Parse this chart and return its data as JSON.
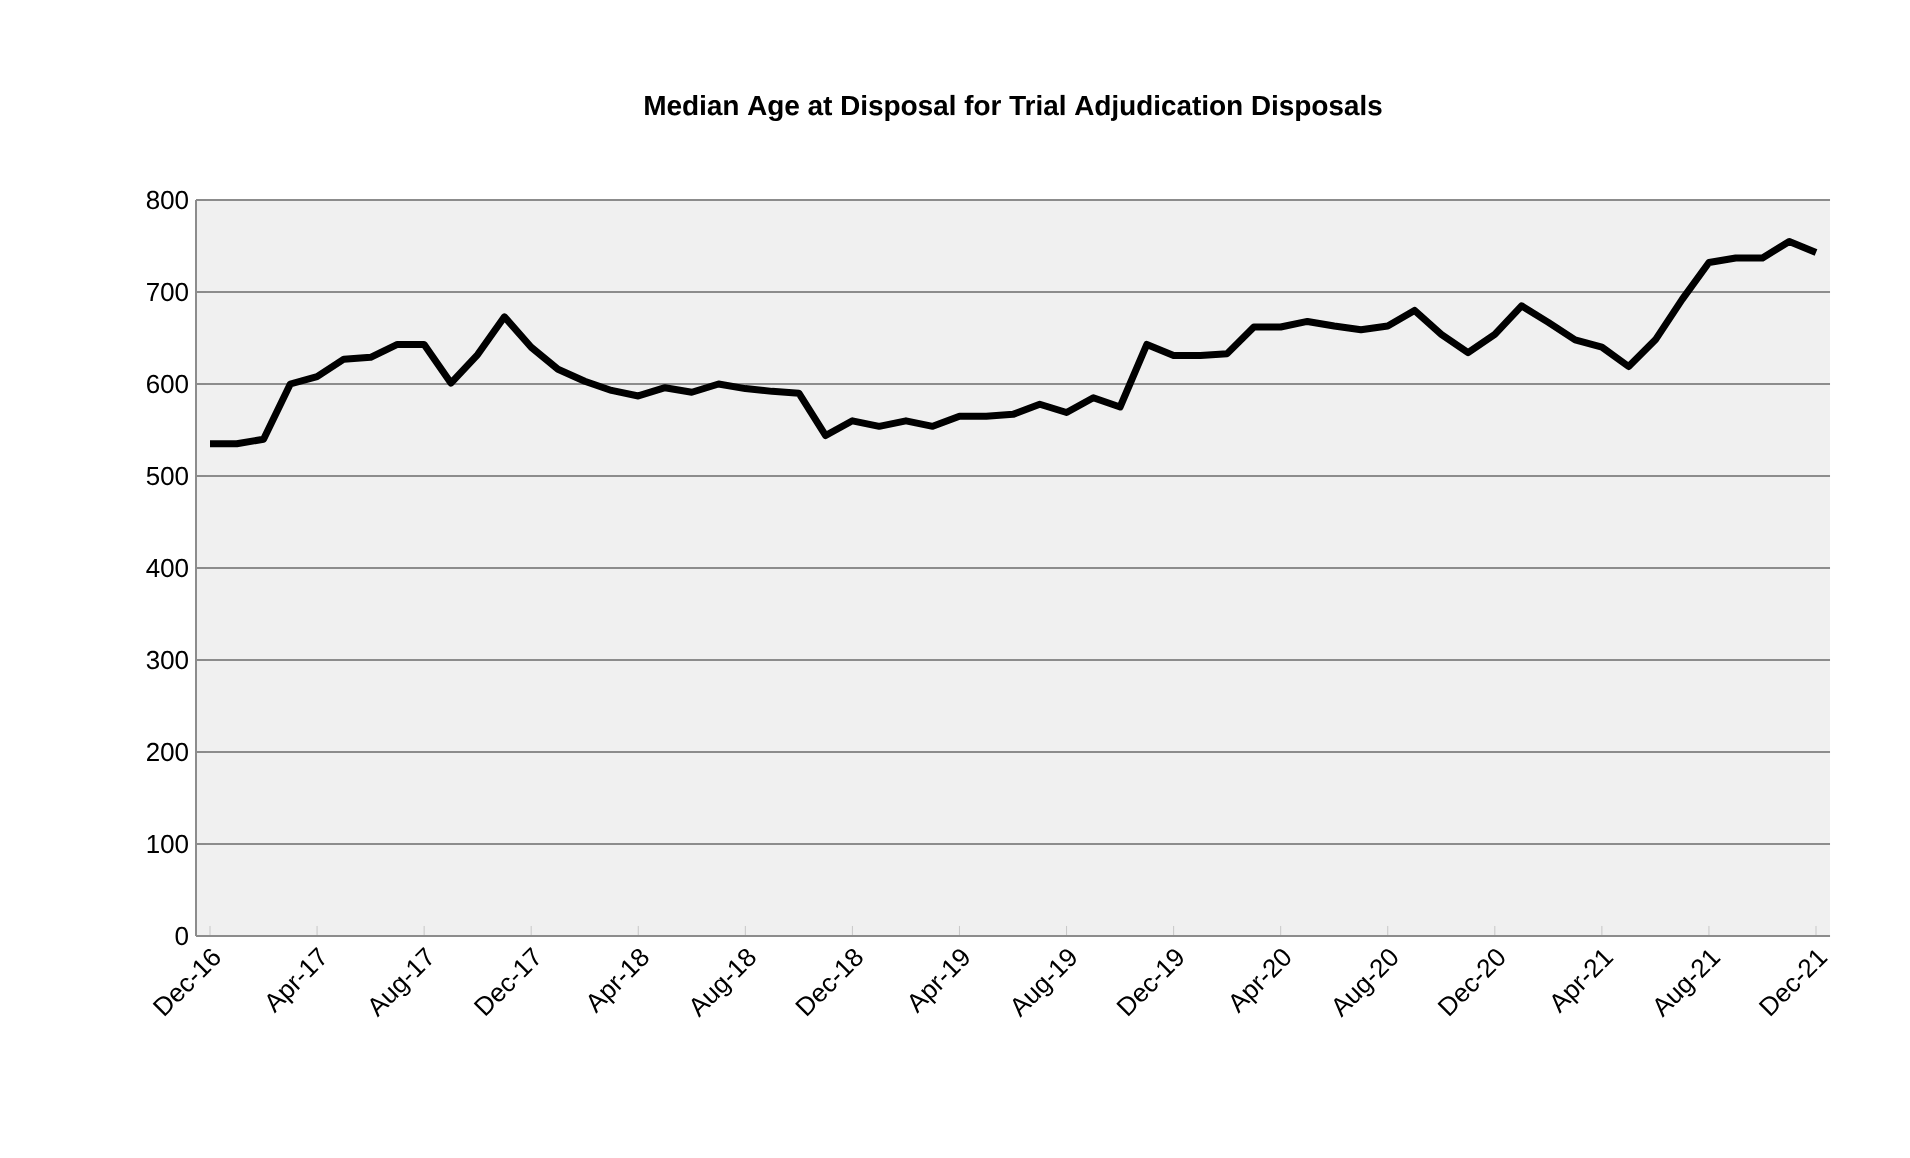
{
  "chart_data": {
    "type": "line",
    "title": "Median Age at Disposal for Trial Adjudication Disposals",
    "categories": [
      "Dec-16",
      null,
      null,
      null,
      "Apr-17",
      null,
      null,
      null,
      "Aug-17",
      null,
      null,
      null,
      "Dec-17",
      null,
      null,
      null,
      "Apr-18",
      null,
      null,
      null,
      "Aug-18",
      null,
      null,
      null,
      "Dec-18",
      null,
      null,
      null,
      "Apr-19",
      null,
      null,
      null,
      "Aug-19",
      null,
      null,
      null,
      "Dec-19",
      null,
      null,
      null,
      "Apr-20",
      null,
      null,
      null,
      "Aug-20",
      null,
      null,
      null,
      "Dec-20",
      null,
      null,
      null,
      "Apr-21",
      null,
      null,
      null,
      "Aug-21",
      null,
      null,
      null,
      "Dec-21"
    ],
    "values": [
      535,
      535,
      540,
      600,
      608,
      627,
      629,
      643,
      643,
      601,
      632,
      673,
      640,
      616,
      603,
      593,
      587,
      596,
      591,
      600,
      595,
      592,
      590,
      544,
      560,
      554,
      560,
      554,
      565,
      565,
      567,
      578,
      569,
      585,
      575,
      643,
      631,
      631,
      633,
      662,
      662,
      668,
      663,
      659,
      663,
      680,
      654,
      634,
      654,
      685,
      667,
      648,
      640,
      619,
      648,
      692,
      732,
      737,
      737,
      755,
      743
    ],
    "color": "#000000",
    "ylim": [
      0,
      800
    ],
    "yticks": [
      0,
      100,
      200,
      300,
      400,
      500,
      600,
      700,
      800
    ],
    "grid": "y",
    "marker": "none",
    "line_style": "solid"
  }
}
